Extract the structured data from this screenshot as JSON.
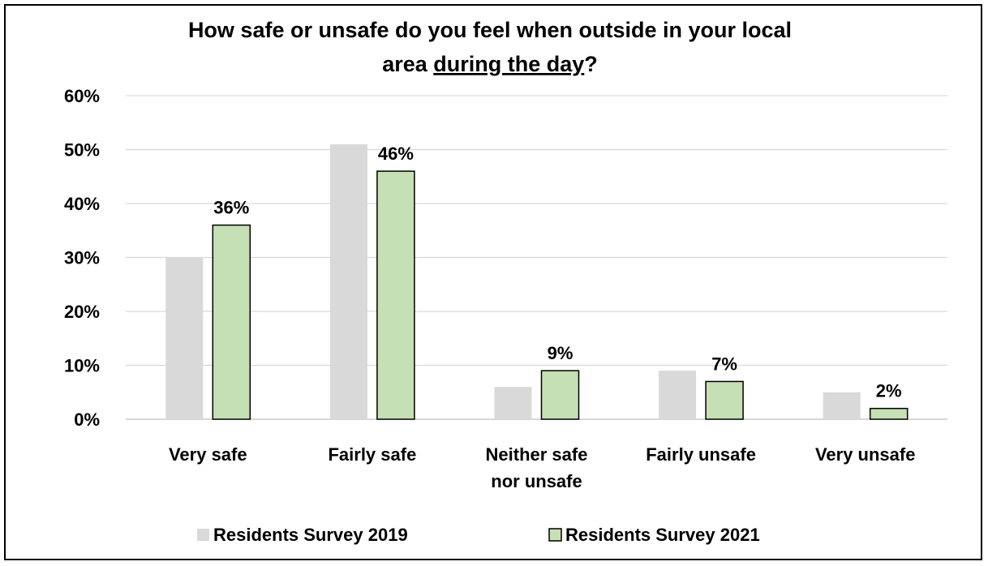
{
  "chart_data": {
    "type": "bar",
    "title_line1": "How safe or unsafe do you feel when outside in your local",
    "title_line2_prefix": "area ",
    "title_line2_underlined": "during the day",
    "title_line2_suffix": "?",
    "categories": [
      "Very safe",
      "Fairly safe",
      "Neither safe nor unsafe",
      "Fairly unsafe",
      "Very unsafe"
    ],
    "category_lines": [
      [
        "Very safe"
      ],
      [
        "Fairly safe"
      ],
      [
        "Neither safe",
        "nor unsafe"
      ],
      [
        "Fairly unsafe"
      ],
      [
        "Very unsafe"
      ]
    ],
    "series": [
      {
        "name": "Residents Survey 2019",
        "values": [
          30,
          51,
          6,
          9,
          5
        ],
        "color": "#d9d9d9",
        "show_labels": false
      },
      {
        "name": "Residents Survey 2021",
        "values": [
          36,
          46,
          9,
          7,
          2
        ],
        "color": "#c5e0b4",
        "show_labels": true,
        "labels": [
          "36%",
          "46%",
          "9%",
          "7%",
          "2%"
        ]
      }
    ],
    "yticks": [
      "0%",
      "10%",
      "20%",
      "30%",
      "40%",
      "50%",
      "60%"
    ],
    "ylim": [
      0,
      60
    ],
    "grid": true,
    "legend_position": "bottom"
  }
}
